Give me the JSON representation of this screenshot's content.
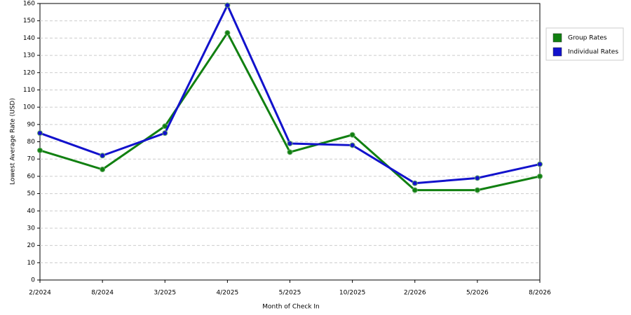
{
  "chart_data": {
    "type": "line",
    "x_label": "Month of Check In",
    "y_label": "Lowest Average Rate (USD)",
    "categories": [
      "2/2024",
      "8/2024",
      "3/2025",
      "4/2025",
      "5/2025",
      "10/2025",
      "2/2026",
      "5/2026",
      "8/2026"
    ],
    "series": [
      {
        "name": "Group Rates",
        "color": "#118011",
        "values": [
          75,
          64,
          89,
          143,
          74,
          84,
          52,
          52,
          60
        ]
      },
      {
        "name": "Individual Rates",
        "color": "#1212cc",
        "values": [
          85,
          72,
          85,
          159,
          79,
          78,
          56,
          59,
          67
        ]
      }
    ],
    "ylim": [
      0,
      160
    ],
    "yticks": [
      0,
      10,
      20,
      30,
      40,
      50,
      60,
      70,
      80,
      90,
      100,
      110,
      120,
      130,
      140,
      150,
      160
    ],
    "grid": true
  }
}
